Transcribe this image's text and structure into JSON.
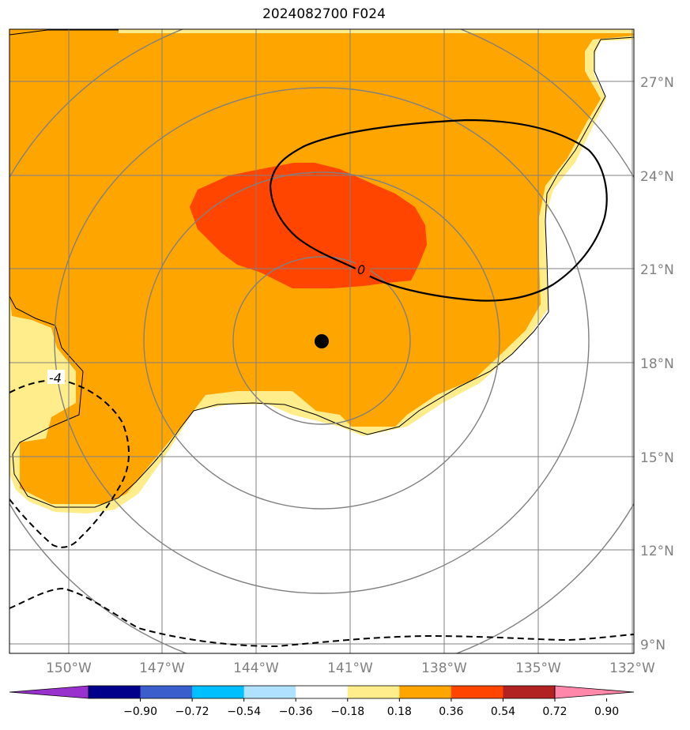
{
  "title": "2024082700 F024",
  "map": {
    "lon_ticks": [
      "150°W",
      "147°W",
      "144°W",
      "141°W",
      "138°W",
      "135°W",
      "132°W"
    ],
    "lat_ticks": [
      "27°N",
      "24°N",
      "21°N",
      "18°N",
      "15°N",
      "12°N",
      "9°N"
    ],
    "lon_range_deg_west": [
      152,
      132
    ],
    "lat_range_deg_north": [
      8.7,
      28.7
    ],
    "center_marker": {
      "lon": "141.9°W",
      "lat": "18.7°N"
    },
    "range_rings_deg": [
      3,
      6,
      9,
      12
    ]
  },
  "contours": [
    {
      "label": "0",
      "style": "solid"
    },
    {
      "label": "-4",
      "style": "dashed"
    }
  ],
  "colorbar": {
    "tick_labels": [
      "−0.90",
      "−0.72",
      "−0.54",
      "−0.36",
      "−0.18",
      "0.18",
      "0.36",
      "0.54",
      "0.72",
      "0.90"
    ],
    "colors": [
      "#9932cc",
      "#00008b",
      "#3a5fcd",
      "#00bfff",
      "#b0e2ff",
      "#ffffff",
      "#ffec8b",
      "#ffa500",
      "#ff4500",
      "#b22222",
      "#ff88aa"
    ]
  },
  "colors": {
    "orange_fill": "#ffa500",
    "red_fill": "#ff4500",
    "yellow_fill": "#ffec8b",
    "grid": "#808080"
  }
}
